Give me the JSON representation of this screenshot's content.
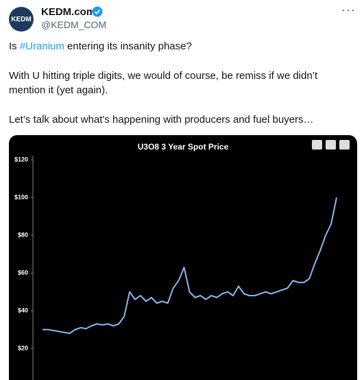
{
  "tweet": {
    "name": "KEDM.com",
    "handle": "@KEDM_COM",
    "avatar_text": "KEDM",
    "paragraphs": [
      [
        "Is ",
        "#Uranium",
        " entering its insanity phase?"
      ],
      [
        "With U hitting triple digits, we would of course, be remiss if we didn’t mention it (yet again)."
      ],
      [
        "Let’s talk about what's happening with producers and fuel buyers…"
      ]
    ]
  },
  "chart_data": {
    "type": "line",
    "title": "U3O8 3 Year Spot Price",
    "color": "#8ab8f0",
    "values": [
      30,
      30,
      29.5,
      29,
      28.5,
      28,
      30,
      31,
      30.5,
      32,
      33,
      32.5,
      33,
      32,
      33,
      37,
      50,
      46,
      48,
      45,
      47,
      44,
      45,
      44,
      52,
      56,
      63,
      50,
      47,
      48,
      46,
      48,
      47,
      49,
      50,
      48,
      53,
      49,
      48,
      48,
      49,
      50,
      49,
      50,
      51,
      52,
      56,
      55,
      55,
      57,
      65,
      72,
      80,
      86,
      100
    ],
    "ylim": [
      3,
      120
    ],
    "yticks": [
      {
        "value": 20,
        "label": "$20"
      },
      {
        "value": 40,
        "label": "$40"
      },
      {
        "value": 60,
        "label": "$60"
      },
      {
        "value": 80,
        "label": "$80"
      },
      {
        "value": 100,
        "label": "$100"
      },
      {
        "value": 120,
        "label": "$120"
      }
    ]
  }
}
